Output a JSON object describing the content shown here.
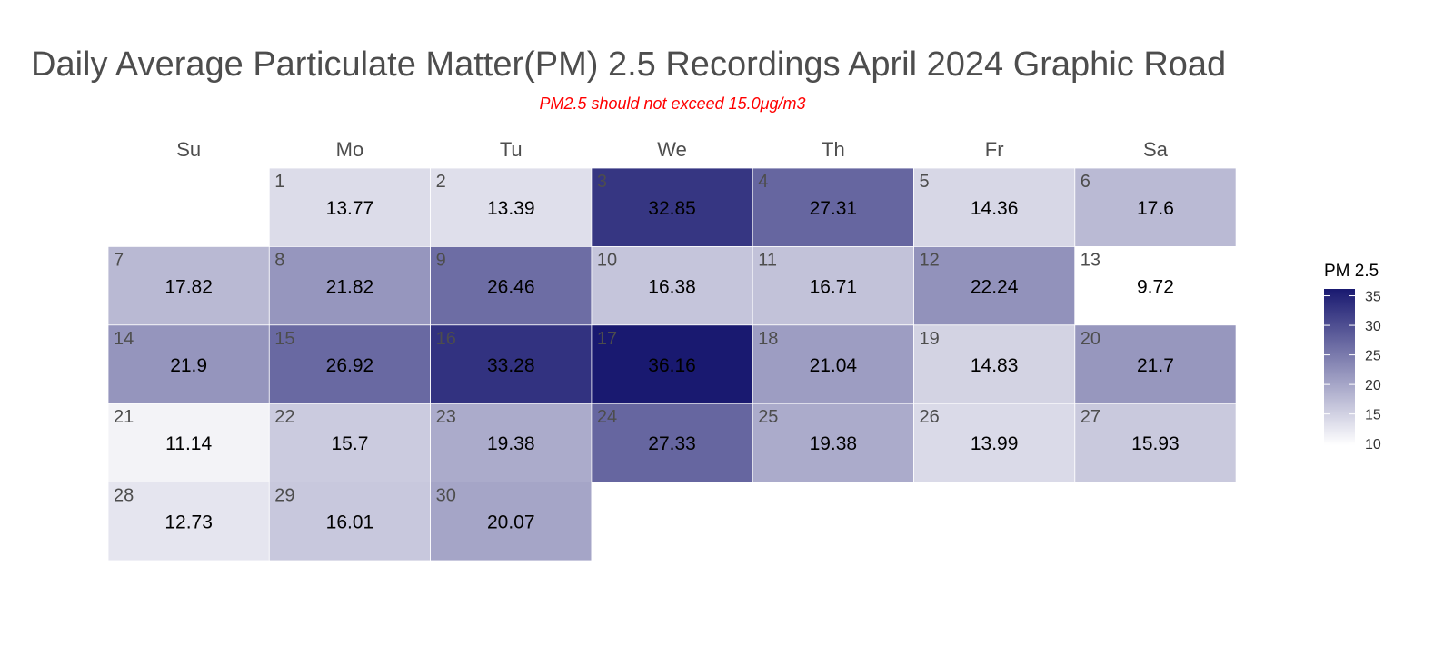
{
  "chart_data": {
    "type": "heatmap",
    "title": "Daily Average Particulate Matter(PM) 2.5 Recordings April 2024 Graphic Road",
    "subtitle": "PM2.5 should not exceed 15.0μg/m3",
    "weekdays": [
      "Su",
      "Mo",
      "Tu",
      "We",
      "Th",
      "Fr",
      "Sa"
    ],
    "first_weekday_index": 1,
    "days": [
      1,
      2,
      3,
      4,
      5,
      6,
      7,
      8,
      9,
      10,
      11,
      12,
      13,
      14,
      15,
      16,
      17,
      18,
      19,
      20,
      21,
      22,
      23,
      24,
      25,
      26,
      27,
      28,
      29,
      30
    ],
    "values": [
      13.77,
      13.39,
      32.85,
      27.31,
      14.36,
      17.6,
      17.82,
      21.82,
      26.46,
      16.38,
      16.71,
      22.24,
      9.72,
      21.9,
      26.92,
      33.28,
      36.16,
      21.04,
      14.83,
      21.7,
      11.14,
      15.7,
      19.38,
      27.33,
      19.38,
      13.99,
      15.93,
      12.73,
      16.01,
      20.07
    ],
    "legend": {
      "title": "PM 2.5",
      "ticks": [
        10,
        15,
        20,
        25,
        30,
        35
      ],
      "range": [
        9.72,
        36.16
      ],
      "low_color": "#ffffff",
      "high_color": "#191970",
      "placement": "right"
    },
    "grid": false
  }
}
